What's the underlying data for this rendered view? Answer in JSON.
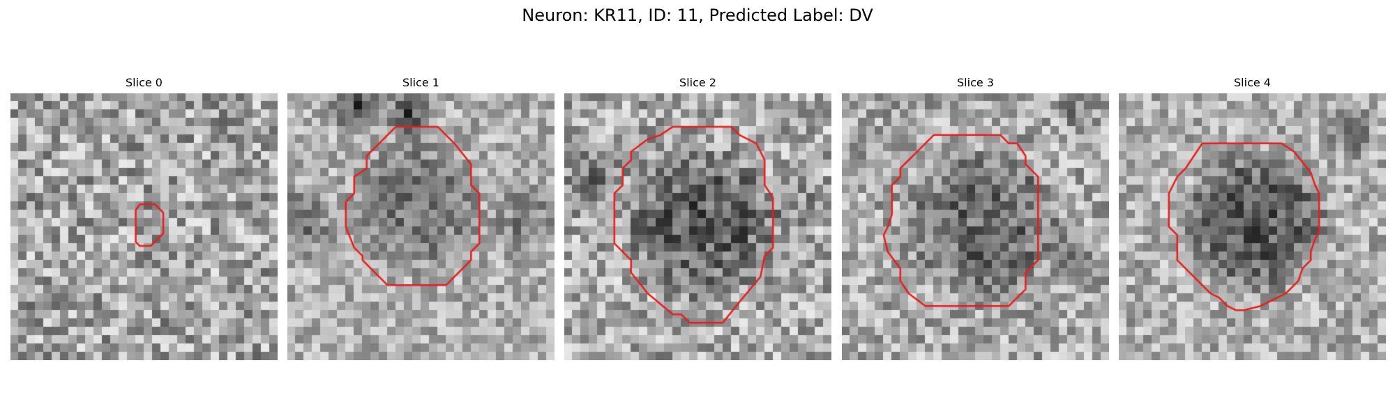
{
  "figure": {
    "title": "Neuron: KR11, ID: 11, Predicted Label: DV"
  },
  "panels": [
    {
      "title": "Slice 0",
      "roi_color": "#e81e1e",
      "image": "grayscale-noise-small-roi"
    },
    {
      "title": "Slice 1",
      "roi_color": "#e81e1e",
      "image": "grayscale-cell-body-roi"
    },
    {
      "title": "Slice 2",
      "roi_color": "#e81e1e",
      "image": "grayscale-cell-body-roi"
    },
    {
      "title": "Slice 3",
      "roi_color": "#e81e1e",
      "image": "grayscale-cell-body-roi"
    },
    {
      "title": "Slice 4",
      "roi_color": "#e81e1e",
      "image": "grayscale-cell-body-roi"
    }
  ]
}
